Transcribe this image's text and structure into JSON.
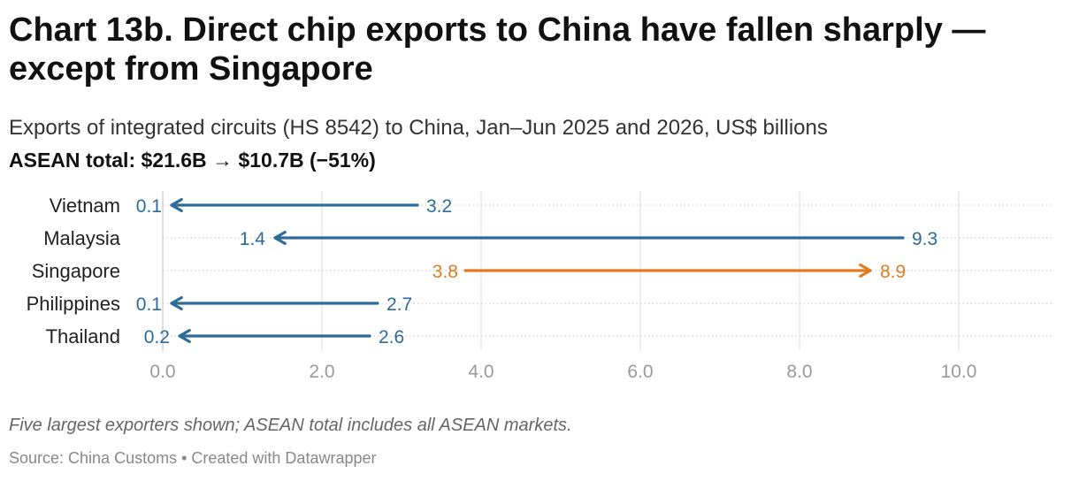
{
  "title": "Chart 13b. Direct chip exports to China have fallen sharply — except from Singapore",
  "subtitle": "Exports of integrated circuits (HS 8542) to China, Jan–Jun 2025 and 2026, US$ billions",
  "summary": "ASEAN total: $21.6B → $10.7B (−51%)",
  "note": "Five largest exporters shown; ASEAN total includes all ASEAN markets.",
  "source": "Source: China Customs • Created with Datawrapper",
  "colors": {
    "decrease": "#2e6b99",
    "increase": "#e07b22",
    "grid": "#dddddd"
  },
  "chart_data": {
    "type": "arrow",
    "xlim": [
      0,
      11.2
    ],
    "xticks": [
      "0.0",
      "2.0",
      "4.0",
      "6.0",
      "8.0",
      "10.0"
    ],
    "xtick_values": [
      0,
      2,
      4,
      6,
      8,
      10
    ],
    "categories": [
      "Vietnam",
      "Malaysia",
      "Singapore",
      "Philippines",
      "Thailand"
    ],
    "series": [
      {
        "name": "2025",
        "values": [
          3.2,
          9.3,
          3.8,
          2.7,
          2.6
        ]
      },
      {
        "name": "2026",
        "values": [
          0.1,
          1.4,
          8.9,
          0.1,
          0.2
        ]
      }
    ]
  }
}
